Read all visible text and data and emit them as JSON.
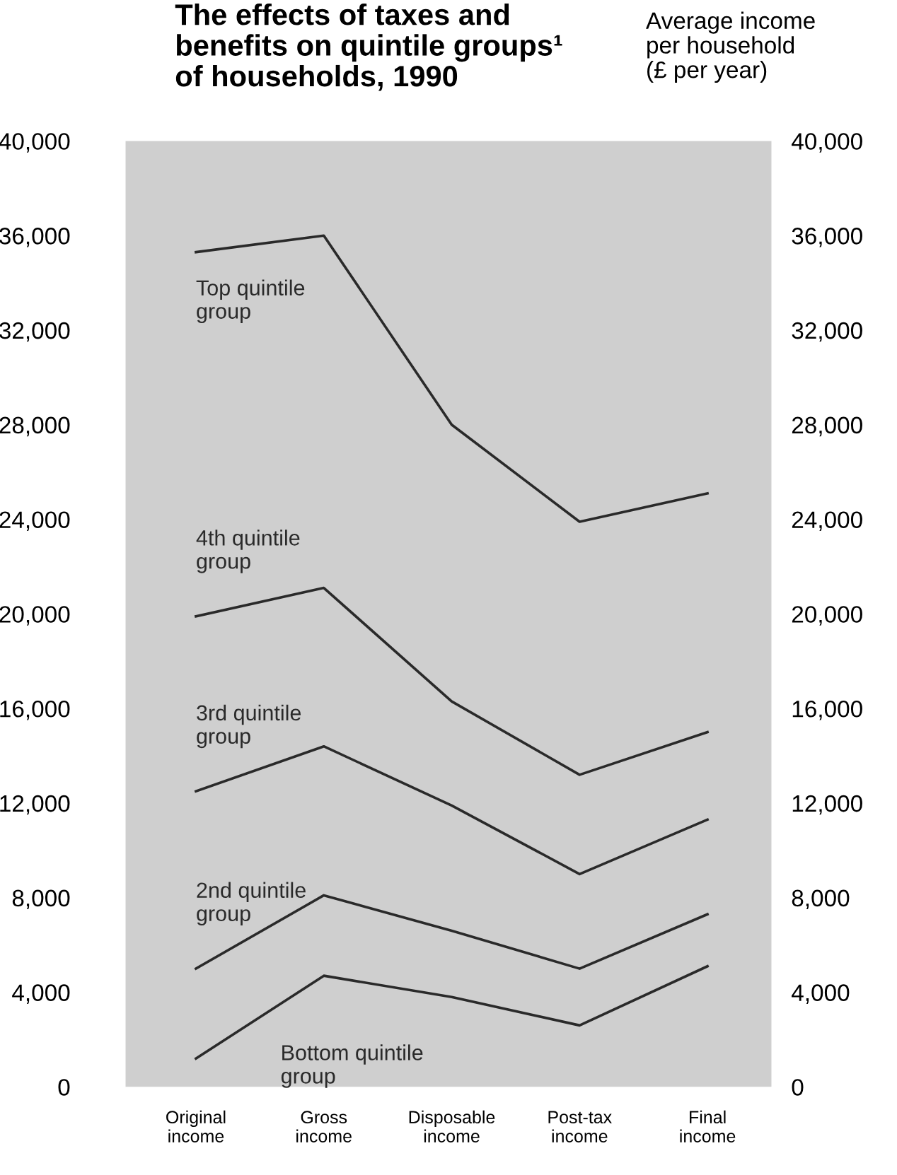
{
  "chart_data": {
    "type": "line",
    "title": "The effects of taxes and\nbenefits on quintile groups¹\nof households, 1990",
    "y2label": "Average income\nper household\n(£ per year)",
    "categories": [
      "Original\nincome",
      "Gross\nincome",
      "Disposable\nincome",
      "Post-tax\nincome",
      "Final\nincome"
    ],
    "series": [
      {
        "name": "Top quintile\ngroup",
        "color": "#2a2a2a",
        "values": [
          35300,
          36000,
          28000,
          23900,
          25100
        ]
      },
      {
        "name": "4th quintile\ngroup",
        "color": "#2a2a2a",
        "values": [
          19900,
          21100,
          16300,
          13200,
          15000
        ]
      },
      {
        "name": "3rd quintile\ngroup",
        "color": "#2a2a2a",
        "values": [
          12500,
          14400,
          11900,
          9000,
          11300
        ]
      },
      {
        "name": "2nd quintile\ngroup",
        "color": "#2a2a2a",
        "values": [
          5000,
          8100,
          6600,
          5000,
          7300
        ]
      },
      {
        "name": "Bottom quintile\ngroup",
        "color": "#2a2a2a",
        "values": [
          1200,
          4700,
          3800,
          2600,
          5100
        ]
      }
    ],
    "ylim": [
      0,
      40000
    ],
    "yticks": [
      0,
      {
        "value": 4000,
        "label": "4,000"
      },
      {
        "value": 8000,
        "label": "8,000"
      },
      {
        "value": 12000,
        "label": "12,000"
      },
      {
        "value": 16000,
        "label": "16,000"
      },
      {
        "value": 20000,
        "label": "20,000"
      },
      {
        "value": 24000,
        "label": "24,000"
      },
      {
        "value": 28000,
        "label": "28,000"
      },
      {
        "value": 32000,
        "label": "32,000"
      },
      {
        "value": 36000,
        "label": "36,000"
      },
      {
        "value": 40000,
        "label": "40,000"
      }
    ],
    "y2lim": [
      0,
      40000
    ],
    "y2ticks": [
      0,
      {
        "value": 4000,
        "label": "4,000"
      },
      {
        "value": 8000,
        "label": "8,000"
      },
      {
        "value": 12000,
        "label": "12,000"
      },
      {
        "value": 16000,
        "label": "16,000"
      },
      {
        "value": 20000,
        "label": "20,000"
      },
      {
        "value": 24000,
        "label": "24,000"
      },
      {
        "value": 28000,
        "label": "28,000"
      },
      {
        "value": 32000,
        "label": "32,000"
      },
      {
        "value": 36000,
        "label": "36,000"
      },
      {
        "value": 40000,
        "label": "40,000"
      }
    ],
    "grid": false,
    "legend": false,
    "marker": "none",
    "line_style": "solid"
  }
}
